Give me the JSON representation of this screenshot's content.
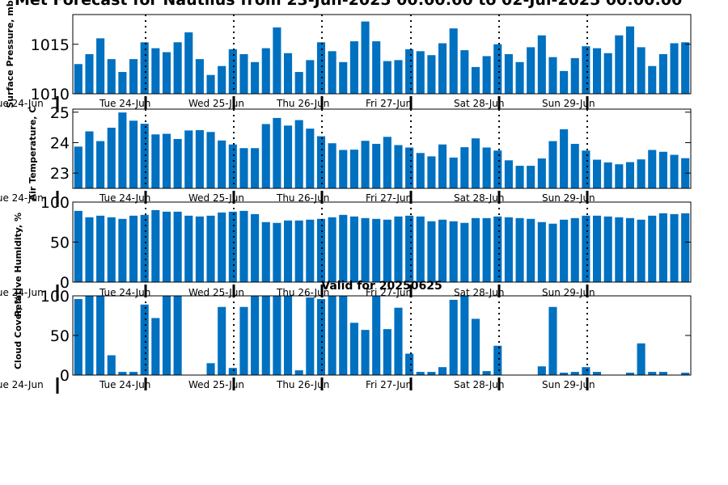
{
  "title": "Met Forecast for Nautilus from 23-Jun-2025 00:00:00 to 02-Jul-2025 00:00:00",
  "bottom_title": "Valid for 20250625",
  "date_labels": [
    "Tue 24-Jun",
    "Tue 24-Jun",
    "Wed 25-Jun",
    "Thu 26-Jun",
    "Fri 27-Jun",
    "Sat 28-Jun",
    "Sun 29-Jun"
  ],
  "colors": {
    "bar": "#0070c0",
    "divider": "#000000"
  },
  "chart_data": [
    {
      "type": "bar",
      "ylabel": "Surface Pressure, mb",
      "ylim": [
        1010,
        1018
      ],
      "yticks": [
        1010,
        1015
      ],
      "values": [
        1013,
        1014,
        1015.6,
        1013.5,
        1012.2,
        1013.5,
        1015.2,
        1014.6,
        1014.2,
        1015.2,
        1016.2,
        1013.5,
        1011.9,
        1012.8,
        1014.5,
        1014,
        1013.2,
        1014.6,
        1016.7,
        1014.1,
        1012.2,
        1013.4,
        1015.2,
        1014.3,
        1013.2,
        1015.3,
        1017.3,
        1015.3,
        1013.3,
        1013.4,
        1014.5,
        1014.3,
        1013.9,
        1015.1,
        1016.6,
        1014.4,
        1012.7,
        1013.8,
        1015,
        1014,
        1013.2,
        1014.7,
        1015.9,
        1013.7,
        1012.3,
        1013.6,
        1014.8,
        1014.6,
        1014.1,
        1015.9,
        1016.8,
        1014.7,
        1012.8,
        1014,
        1015.1,
        1015.2
      ]
    },
    {
      "type": "bar",
      "ylabel": "Air Temperature, C",
      "ylim": [
        22.5,
        25.1
      ],
      "yticks": [
        23,
        24,
        25
      ],
      "values": [
        23.87,
        24.37,
        24.05,
        24.49,
        24.99,
        24.72,
        24.62,
        24.27,
        24.29,
        24.12,
        24.4,
        24.41,
        24.35,
        24.07,
        23.94,
        23.82,
        23.82,
        24.61,
        24.81,
        24.56,
        24.74,
        24.46,
        24.21,
        23.98,
        23.76,
        23.77,
        24.06,
        23.96,
        24.19,
        23.92,
        23.84,
        23.66,
        23.55,
        23.94,
        23.51,
        23.85,
        24.14,
        23.84,
        23.74,
        23.42,
        23.24,
        23.24,
        23.48,
        24.05,
        24.44,
        23.96,
        23.74,
        23.44,
        23.35,
        23.29,
        23.36,
        23.45,
        23.76,
        23.7,
        23.6,
        23.49
      ]
    },
    {
      "type": "bar",
      "ylabel": "Relative Humidity, %",
      "ylim": [
        0,
        100
      ],
      "yticks": [
        0,
        50,
        100
      ],
      "values": [
        89,
        81,
        83,
        81,
        79,
        83,
        84,
        90,
        88,
        88,
        83,
        82,
        83,
        87,
        88,
        89,
        85,
        75,
        74,
        77,
        77,
        78,
        79,
        81,
        84,
        82,
        80,
        79,
        78,
        82,
        83,
        82,
        76,
        78,
        76,
        74,
        80,
        80,
        82,
        81,
        80,
        79,
        75,
        73,
        78,
        80,
        83,
        83,
        82,
        81,
        80,
        78,
        83,
        86,
        85,
        86
      ]
    },
    {
      "type": "bar",
      "ylabel": "Cloud Cover, %",
      "ylim": [
        0,
        100
      ],
      "yticks": [
        0,
        50,
        100
      ],
      "values": [
        96,
        100,
        100,
        25,
        4,
        4,
        89,
        72,
        100,
        100,
        0,
        0,
        15,
        86,
        9,
        86,
        100,
        100,
        100,
        100,
        6,
        98,
        96,
        100,
        100,
        66,
        57,
        100,
        58,
        85,
        27,
        4,
        4,
        10,
        95,
        100,
        71,
        5,
        37,
        0,
        0,
        0,
        11,
        86,
        3,
        4,
        10,
        4,
        0,
        0,
        3,
        40,
        4,
        4,
        0,
        3
      ]
    }
  ]
}
